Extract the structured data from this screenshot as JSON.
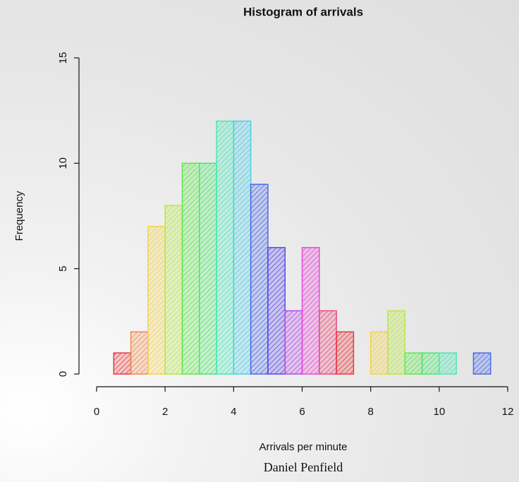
{
  "chart_data": {
    "type": "histogram",
    "title": "Histogram of arrivals",
    "xlabel": "Arrivals per minute",
    "ylabel": "Frequency",
    "caption": "Daniel Penfield",
    "bins": [
      0.5,
      1,
      1.5,
      2,
      2.5,
      3,
      3.5,
      4,
      4.5,
      5,
      5.5,
      6,
      6.5,
      7,
      7.5,
      8,
      8.5,
      9,
      9.5,
      10,
      10.5,
      11,
      11.5
    ],
    "values": [
      1,
      2,
      7,
      8,
      10,
      10,
      12,
      12,
      9,
      6,
      3,
      6,
      3,
      2,
      0,
      2,
      3,
      1,
      1,
      1,
      0,
      1
    ],
    "colors": [
      "#e8383d",
      "#f08a4b",
      "#f2d24a",
      "#b8e845",
      "#5fe84a",
      "#4ae86a",
      "#4ae8b8",
      "#4ad0e8",
      "#4a6ae8",
      "#5a4ae8",
      "#b44ae8",
      "#e84ad8",
      "#e84a7a",
      "#e8383d",
      "#f08a4b",
      "#f2d24a",
      "#b8e845",
      "#5fe84a",
      "#4ae86a",
      "#4ae8b8",
      "#4ad0e8",
      "#4a6ae8"
    ],
    "xlim": [
      0,
      12
    ],
    "ylim": [
      0,
      15
    ],
    "xticks": [
      0,
      2,
      4,
      6,
      8,
      10,
      12
    ],
    "yticks": [
      0,
      5,
      10,
      15
    ]
  }
}
